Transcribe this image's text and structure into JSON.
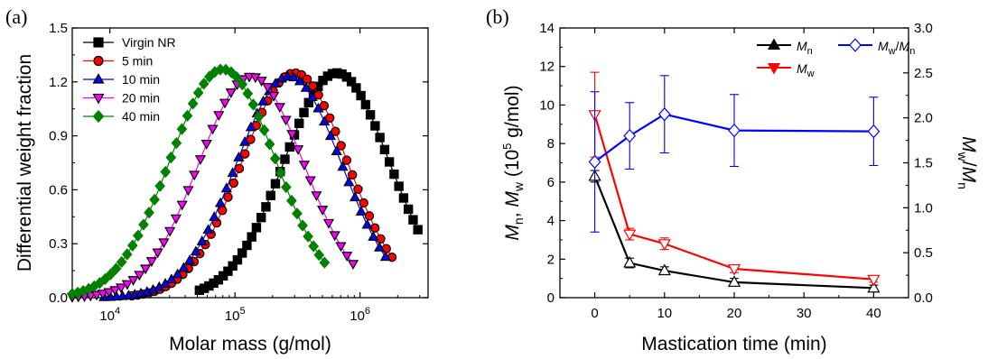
{
  "chart_data": [
    {
      "panel": "(a)",
      "type": "line",
      "xlabel": "Molar mass (g/mol)",
      "ylabel": "Differential weight fraction",
      "xscale": "log",
      "xlim": [
        5000,
        3500000
      ],
      "ylim": [
        0,
        1.5
      ],
      "xticks": [
        {
          "value": 10000,
          "base": "10",
          "exp": "4"
        },
        {
          "value": 100000,
          "base": "10",
          "exp": "5"
        },
        {
          "value": 1000000,
          "base": "10",
          "exp": "6"
        }
      ],
      "yticks": [
        "0.0",
        "0.3",
        "0.6",
        "0.9",
        "1.2",
        "1.5"
      ],
      "legend_position": "top-left",
      "series": [
        {
          "name": "Virgin NR",
          "color": "#000000",
          "marker": "square",
          "peak_x": 650000,
          "peak_y": 1.25,
          "x_start": 52000,
          "x_end": 2900000
        },
        {
          "name": "5 min",
          "color": "#ff0000",
          "marker": "circle",
          "peak_x": 300000,
          "peak_y": 1.25,
          "x_start": 15000,
          "x_end": 1800000
        },
        {
          "name": "10 min",
          "color": "#0000ff",
          "marker": "triangle-up",
          "peak_x": 270000,
          "peak_y": 1.23,
          "x_start": 9000,
          "x_end": 1600000
        },
        {
          "name": "20 min",
          "color": "#ff00ff",
          "marker": "triangle-down",
          "peak_x": 135000,
          "peak_y": 1.23,
          "x_start": 5000,
          "x_end": 880000
        },
        {
          "name": "40 min",
          "color": "#008000",
          "marker": "diamond",
          "peak_x": 80000,
          "peak_y": 1.27,
          "x_start": 5000,
          "x_end": 520000
        }
      ]
    },
    {
      "panel": "(b)",
      "type": "line",
      "xlabel": "Mastication time (min)",
      "ylabel_left": "Mn, Mw (10^5 g/mol)",
      "ylabel_right": "Mw/Mn",
      "xlim": [
        -5,
        45
      ],
      "ylim_left": [
        0,
        14
      ],
      "ylim_right": [
        0,
        3.0
      ],
      "xticks": [
        "0",
        "10",
        "20",
        "30",
        "40"
      ],
      "yticks_left": [
        "0",
        "2",
        "4",
        "6",
        "8",
        "10",
        "12",
        "14"
      ],
      "yticks_right": [
        "0.0",
        "0.5",
        "1.0",
        "1.5",
        "2.0",
        "2.5",
        "3.0"
      ],
      "x": [
        0,
        5,
        10,
        20,
        40
      ],
      "series": [
        {
          "name": "Mn",
          "color": "#000000",
          "marker": "triangle-up",
          "axis": "left",
          "values": [
            6.3,
            1.8,
            1.4,
            0.8,
            0.5
          ],
          "errors": [
            0.3,
            0.25,
            0.2,
            0.2,
            0.15
          ]
        },
        {
          "name": "Mw",
          "color": "#ff0000",
          "marker": "triangle-down",
          "axis": "left",
          "values": [
            9.5,
            3.3,
            2.8,
            1.5,
            0.95
          ],
          "errors": [
            2.2,
            0.3,
            0.3,
            0.2,
            0.15
          ]
        },
        {
          "name": "Mw/Mn",
          "color": "#0000ff",
          "marker": "diamond",
          "axis": "right",
          "values": [
            1.51,
            1.8,
            2.04,
            1.86,
            1.85
          ],
          "errors": [
            0.78,
            0.37,
            0.43,
            0.4,
            0.38
          ]
        }
      ]
    }
  ]
}
